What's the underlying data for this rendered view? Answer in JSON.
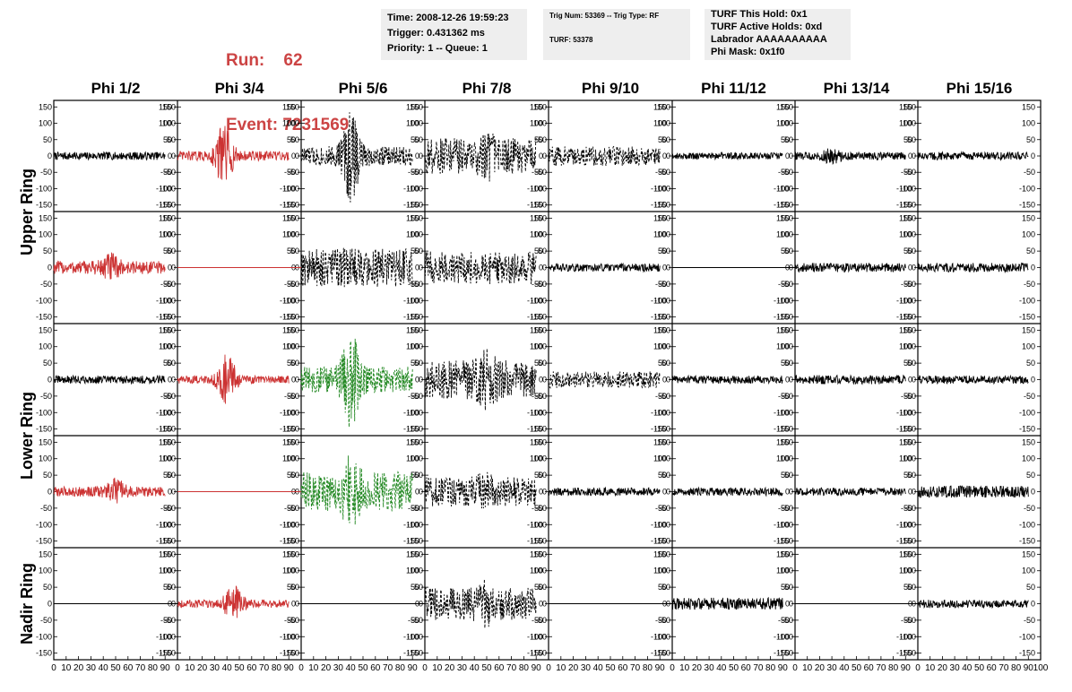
{
  "header": {
    "run_label": "Run:",
    "run_value": "62",
    "event_label": "Event:",
    "event_value": "7231569",
    "time": "Time: 2008-12-26 19:59:23",
    "trigger": "Trigger: 0.431362 ms",
    "priority": "Priority: 1 -- Queue: 1",
    "trig_num": "Trig Num: 53369 -- Trig Type: RF",
    "turf": "TURF: 53378",
    "turf_hold": "TURF This Hold: 0x1",
    "turf_active": "TURF Active Holds: 0xd",
    "labrador": "Labrador AAAAAAAAAA",
    "phi_mask": "Phi Mask: 0x1f0"
  },
  "colors": {
    "run_text": "#cc4444",
    "info_bg": "#eeeeee",
    "red_trace": "#cc3333",
    "green_trace": "#228822",
    "black_trace": "#000000"
  },
  "chart_data": {
    "type": "line",
    "columns": [
      "Phi 1/2",
      "Phi 3/4",
      "Phi 5/6",
      "Phi 7/8",
      "Phi 9/10",
      "Phi 11/12",
      "Phi 13/14",
      "Phi 15/16"
    ],
    "rows": [
      "Upper Ring",
      "Lower Ring",
      "Nadir Ring"
    ],
    "xlim": [
      0,
      100
    ],
    "ylim": [
      -170,
      170
    ],
    "x_ticks": [
      0,
      10,
      20,
      30,
      40,
      50,
      60,
      70,
      80,
      90,
      100
    ],
    "y_ticks": [
      -150,
      -100,
      -50,
      0,
      50,
      100,
      150
    ],
    "panels": [
      {
        "row": 0,
        "col": 0,
        "color": "black",
        "style": "solid",
        "amp": 12,
        "burst": 0,
        "peak": 30
      },
      {
        "row": 0,
        "col": 1,
        "color": "red",
        "style": "solid",
        "amp": 15,
        "burst": 90,
        "peak": 38
      },
      {
        "row": 0,
        "col": 2,
        "color": "black",
        "style": "dashed",
        "amp": 30,
        "burst": 120,
        "peak": 40
      },
      {
        "row": 0,
        "col": 3,
        "color": "black",
        "style": "dashed",
        "amp": 55,
        "burst": 30,
        "peak": 50
      },
      {
        "row": 0,
        "col": 4,
        "color": "black",
        "style": "dashed",
        "amp": 30,
        "burst": 0,
        "peak": 50
      },
      {
        "row": 0,
        "col": 5,
        "color": "black",
        "style": "solid",
        "amp": 10,
        "burst": 0,
        "peak": 40
      },
      {
        "row": 0,
        "col": 6,
        "color": "black",
        "style": "solid",
        "amp": 12,
        "burst": 15,
        "peak": 30
      },
      {
        "row": 0,
        "col": 7,
        "color": "black",
        "style": "solid",
        "amp": 12,
        "burst": 0,
        "peak": 50
      },
      {
        "row": 1,
        "col": 0,
        "color": "red",
        "style": "solid",
        "amp": 20,
        "burst": 30,
        "peak": 45
      },
      {
        "row": 1,
        "col": 1,
        "color": "red",
        "style": "flat",
        "amp": 0,
        "burst": 0,
        "peak": 50
      },
      {
        "row": 1,
        "col": 2,
        "color": "black",
        "style": "dashed",
        "amp": 60,
        "burst": 0,
        "peak": 50
      },
      {
        "row": 1,
        "col": 3,
        "color": "black",
        "style": "dashed",
        "amp": 50,
        "burst": 0,
        "peak": 50
      },
      {
        "row": 1,
        "col": 4,
        "color": "black",
        "style": "solid",
        "amp": 12,
        "burst": 0,
        "peak": 50
      },
      {
        "row": 1,
        "col": 5,
        "color": "black",
        "style": "flat",
        "amp": 0,
        "burst": 0,
        "peak": 50
      },
      {
        "row": 1,
        "col": 6,
        "color": "black",
        "style": "solid",
        "amp": 14,
        "burst": 0,
        "peak": 50
      },
      {
        "row": 1,
        "col": 7,
        "color": "black",
        "style": "solid",
        "amp": 14,
        "burst": 0,
        "peak": 50
      },
      {
        "row": 2,
        "col": 0,
        "color": "black",
        "style": "solid",
        "amp": 12,
        "burst": 0,
        "peak": 50
      },
      {
        "row": 2,
        "col": 1,
        "color": "red",
        "style": "solid",
        "amp": 12,
        "burst": 70,
        "peak": 40
      },
      {
        "row": 2,
        "col": 2,
        "color": "green",
        "style": "dashed",
        "amp": 40,
        "burst": 110,
        "peak": 40
      },
      {
        "row": 2,
        "col": 3,
        "color": "black",
        "style": "dashed",
        "amp": 60,
        "burst": 40,
        "peak": 50
      },
      {
        "row": 2,
        "col": 4,
        "color": "black",
        "style": "dashed",
        "amp": 25,
        "burst": 0,
        "peak": 50
      },
      {
        "row": 2,
        "col": 5,
        "color": "black",
        "style": "solid",
        "amp": 12,
        "burst": 0,
        "peak": 50
      },
      {
        "row": 2,
        "col": 6,
        "color": "black",
        "style": "solid",
        "amp": 14,
        "burst": 0,
        "peak": 50
      },
      {
        "row": 2,
        "col": 7,
        "color": "black",
        "style": "solid",
        "amp": 12,
        "burst": 0,
        "peak": 50
      },
      {
        "row": 3,
        "col": 0,
        "color": "red",
        "style": "solid",
        "amp": 15,
        "burst": 30,
        "peak": 50
      },
      {
        "row": 3,
        "col": 1,
        "color": "red",
        "style": "flat",
        "amp": 0,
        "burst": 0,
        "peak": 50
      },
      {
        "row": 3,
        "col": 2,
        "color": "green",
        "style": "dashed",
        "amp": 60,
        "burst": 60,
        "peak": 40
      },
      {
        "row": 3,
        "col": 3,
        "color": "black",
        "style": "dashed",
        "amp": 45,
        "burst": 20,
        "peak": 50
      },
      {
        "row": 3,
        "col": 4,
        "color": "black",
        "style": "solid",
        "amp": 12,
        "burst": 0,
        "peak": 50
      },
      {
        "row": 3,
        "col": 5,
        "color": "black",
        "style": "solid",
        "amp": 12,
        "burst": 0,
        "peak": 50
      },
      {
        "row": 3,
        "col": 6,
        "color": "black",
        "style": "solid",
        "amp": 12,
        "burst": 0,
        "peak": 50
      },
      {
        "row": 3,
        "col": 7,
        "color": "black",
        "style": "solid",
        "amp": 18,
        "burst": 0,
        "peak": 50
      },
      {
        "row": 4,
        "col": 0,
        "color": "black",
        "style": "flat",
        "amp": 0,
        "burst": 0,
        "peak": 50
      },
      {
        "row": 4,
        "col": 1,
        "color": "red",
        "style": "solid",
        "amp": 12,
        "burst": 50,
        "peak": 45
      },
      {
        "row": 4,
        "col": 2,
        "color": "black",
        "style": "flat",
        "amp": 0,
        "burst": 0,
        "peak": 50
      },
      {
        "row": 4,
        "col": 3,
        "color": "black",
        "style": "dashed",
        "amp": 50,
        "burst": 30,
        "peak": 50
      },
      {
        "row": 4,
        "col": 4,
        "color": "black",
        "style": "flat",
        "amp": 0,
        "burst": 0,
        "peak": 50
      },
      {
        "row": 4,
        "col": 5,
        "color": "black",
        "style": "solid",
        "amp": 18,
        "burst": 0,
        "peak": 50
      },
      {
        "row": 4,
        "col": 6,
        "color": "black",
        "style": "flat",
        "amp": 0,
        "burst": 0,
        "peak": 50
      },
      {
        "row": 4,
        "col": 7,
        "color": "black",
        "style": "solid",
        "amp": 12,
        "burst": 0,
        "peak": 50
      }
    ]
  }
}
